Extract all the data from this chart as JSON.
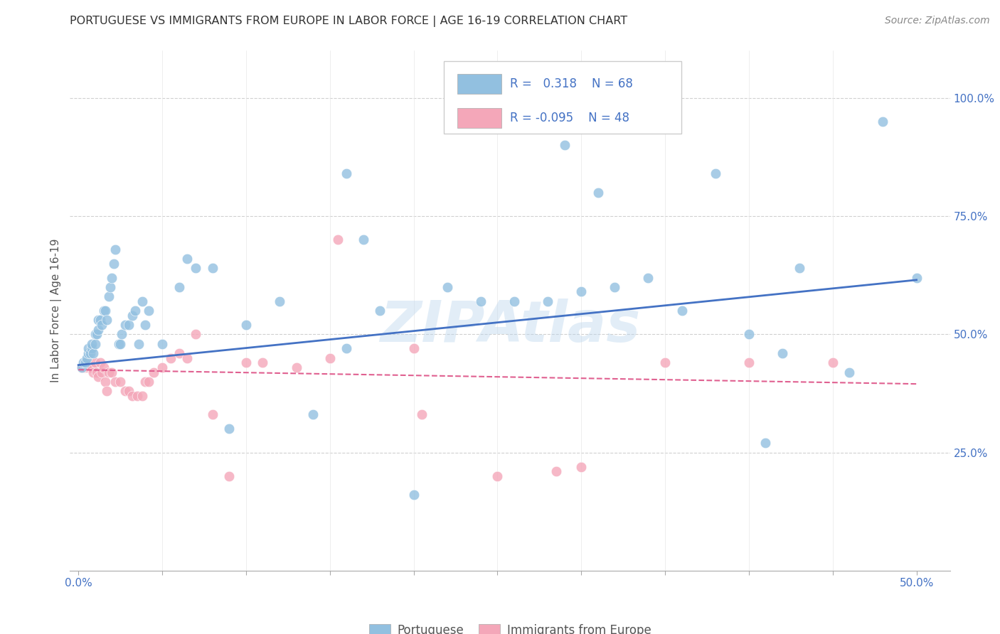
{
  "title": "PORTUGUESE VS IMMIGRANTS FROM EUROPE IN LABOR FORCE | AGE 16-19 CORRELATION CHART",
  "source": "Source: ZipAtlas.com",
  "ylabel": "In Labor Force | Age 16-19",
  "xlim": [
    -0.005,
    0.52
  ],
  "ylim": [
    0.0,
    1.1
  ],
  "xticks": [
    0.0,
    0.05,
    0.1,
    0.15,
    0.2,
    0.25,
    0.3,
    0.35,
    0.4,
    0.45,
    0.5
  ],
  "xticklabels": [
    "0.0%",
    "",
    "",
    "",
    "",
    "",
    "",
    "",
    "",
    "",
    "50.0%"
  ],
  "yticks": [
    0.0,
    0.25,
    0.5,
    0.75,
    1.0
  ],
  "yticklabels": [
    "",
    "25.0%",
    "50.0%",
    "75.0%",
    "100.0%"
  ],
  "blue_color": "#92c0e0",
  "pink_color": "#f4a7b9",
  "blue_line_color": "#4472c4",
  "pink_line_color": "#e06090",
  "grid_color": "#d0d0d0",
  "legend_text_color": "#4472c4",
  "blue_scatter_x": [
    0.002,
    0.003,
    0.004,
    0.005,
    0.006,
    0.006,
    0.007,
    0.008,
    0.008,
    0.009,
    0.01,
    0.01,
    0.011,
    0.012,
    0.012,
    0.013,
    0.014,
    0.015,
    0.016,
    0.017,
    0.018,
    0.019,
    0.02,
    0.021,
    0.022,
    0.024,
    0.025,
    0.026,
    0.028,
    0.03,
    0.032,
    0.034,
    0.036,
    0.038,
    0.04,
    0.042,
    0.05,
    0.06,
    0.065,
    0.07,
    0.08,
    0.09,
    0.1,
    0.12,
    0.14,
    0.16,
    0.17,
    0.18,
    0.2,
    0.22,
    0.24,
    0.26,
    0.28,
    0.3,
    0.32,
    0.34,
    0.36,
    0.4,
    0.43,
    0.46,
    0.48,
    0.5,
    0.38,
    0.16,
    0.29,
    0.31,
    0.41,
    0.42
  ],
  "blue_scatter_y": [
    0.43,
    0.44,
    0.44,
    0.45,
    0.46,
    0.47,
    0.46,
    0.47,
    0.48,
    0.46,
    0.48,
    0.5,
    0.5,
    0.51,
    0.53,
    0.53,
    0.52,
    0.55,
    0.55,
    0.53,
    0.58,
    0.6,
    0.62,
    0.65,
    0.68,
    0.48,
    0.48,
    0.5,
    0.52,
    0.52,
    0.54,
    0.55,
    0.48,
    0.57,
    0.52,
    0.55,
    0.48,
    0.6,
    0.66,
    0.64,
    0.64,
    0.3,
    0.52,
    0.57,
    0.33,
    0.47,
    0.7,
    0.55,
    0.16,
    0.6,
    0.57,
    0.57,
    0.57,
    0.59,
    0.6,
    0.62,
    0.55,
    0.5,
    0.64,
    0.42,
    0.95,
    0.62,
    0.84,
    0.84,
    0.9,
    0.8,
    0.27,
    0.46
  ],
  "pink_scatter_x": [
    0.002,
    0.003,
    0.004,
    0.005,
    0.006,
    0.007,
    0.008,
    0.009,
    0.01,
    0.011,
    0.012,
    0.013,
    0.014,
    0.015,
    0.016,
    0.017,
    0.018,
    0.02,
    0.022,
    0.025,
    0.028,
    0.03,
    0.032,
    0.035,
    0.038,
    0.04,
    0.042,
    0.045,
    0.05,
    0.055,
    0.06,
    0.065,
    0.07,
    0.08,
    0.09,
    0.1,
    0.11,
    0.13,
    0.15,
    0.2,
    0.25,
    0.3,
    0.35,
    0.4,
    0.45,
    0.155,
    0.205,
    0.285
  ],
  "pink_scatter_y": [
    0.43,
    0.43,
    0.43,
    0.44,
    0.43,
    0.43,
    0.43,
    0.42,
    0.44,
    0.42,
    0.41,
    0.44,
    0.42,
    0.43,
    0.4,
    0.38,
    0.42,
    0.42,
    0.4,
    0.4,
    0.38,
    0.38,
    0.37,
    0.37,
    0.37,
    0.4,
    0.4,
    0.42,
    0.43,
    0.45,
    0.46,
    0.45,
    0.5,
    0.33,
    0.2,
    0.44,
    0.44,
    0.43,
    0.45,
    0.47,
    0.2,
    0.22,
    0.44,
    0.44,
    0.44,
    0.7,
    0.33,
    0.21
  ],
  "blue_trend_x": [
    0.0,
    0.5
  ],
  "blue_trend_y": [
    0.435,
    0.615
  ],
  "pink_trend_x": [
    0.0,
    0.5
  ],
  "pink_trend_y": [
    0.425,
    0.395
  ]
}
